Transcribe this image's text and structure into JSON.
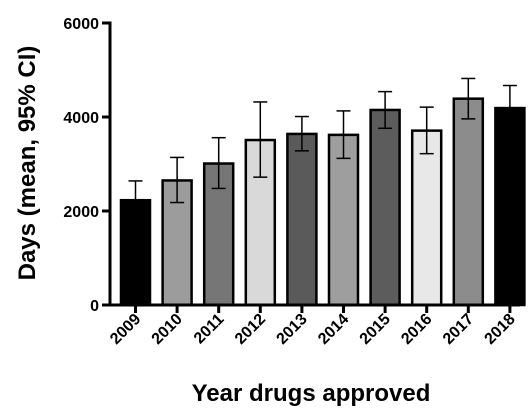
{
  "chart_data": {
    "type": "bar",
    "title": "",
    "xlabel": "Year drugs approved",
    "ylabel": "Days (mean, 95% CI)",
    "ylim": [
      0,
      6000
    ],
    "yticks": [
      "0",
      "2000",
      "4000",
      "6000"
    ],
    "categories": [
      "2009",
      "2010",
      "2011",
      "2012",
      "2013",
      "2014",
      "2015",
      "2016",
      "2017",
      "2018"
    ],
    "values": [
      2230,
      2650,
      3010,
      3510,
      3640,
      3620,
      4150,
      3710,
      4390,
      4190
    ],
    "ci_low": [
      1820,
      2180,
      2480,
      2720,
      3280,
      3120,
      3760,
      3220,
      3960,
      3720
    ],
    "ci_high": [
      2640,
      3140,
      3560,
      4320,
      4010,
      4130,
      4540,
      4210,
      4820,
      4670
    ],
    "bar_colors": [
      "#000000",
      "#9c9c9c",
      "#767676",
      "#d9d9d9",
      "#5a5a5a",
      "#9e9e9e",
      "#5c5c5c",
      "#e8e8e8",
      "#8c8c8c",
      "#000000"
    ],
    "error_bars": true,
    "grid": false,
    "legend": "none"
  }
}
